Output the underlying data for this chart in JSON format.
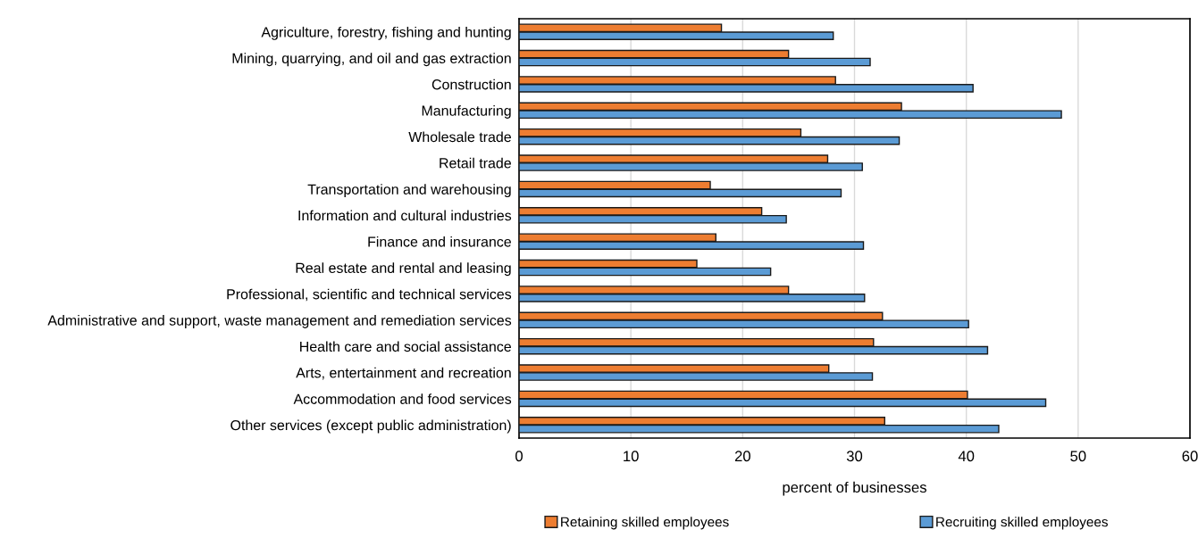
{
  "chart_data": {
    "type": "bar",
    "orientation": "horizontal",
    "xlabel": "percent of businesses",
    "categories": [
      "Agriculture, forestry, fishing and hunting",
      "Mining, quarrying, and oil and gas extraction",
      "Construction",
      "Manufacturing",
      "Wholesale trade",
      "Retail trade",
      "Transportation and warehousing",
      "Information and cultural industries",
      "Finance and insurance",
      "Real estate and rental and leasing",
      "Professional, scientific and technical services",
      "Administrative and support, waste management and remediation services",
      "Health care and social assistance",
      "Arts, entertainment and recreation",
      "Accommodation and food services",
      "Other services (except public administration)"
    ],
    "series": [
      {
        "name": "Retaining skilled employees",
        "color": "#ed7d31",
        "values": [
          18.1,
          24.1,
          28.3,
          34.2,
          25.2,
          27.6,
          17.1,
          21.7,
          17.6,
          15.9,
          24.1,
          32.5,
          31.7,
          27.7,
          40.1,
          32.7
        ]
      },
      {
        "name": "Recruiting skilled employees",
        "color": "#5b9bd5",
        "values": [
          28.1,
          31.4,
          40.6,
          48.5,
          34.0,
          30.7,
          28.8,
          23.9,
          30.8,
          22.5,
          30.9,
          40.2,
          41.9,
          31.6,
          47.1,
          42.9
        ]
      }
    ],
    "xlim": [
      0,
      60
    ],
    "xticks": [
      0,
      10,
      20,
      30,
      40,
      50,
      60
    ],
    "grid": "x",
    "legend": "bottom"
  }
}
